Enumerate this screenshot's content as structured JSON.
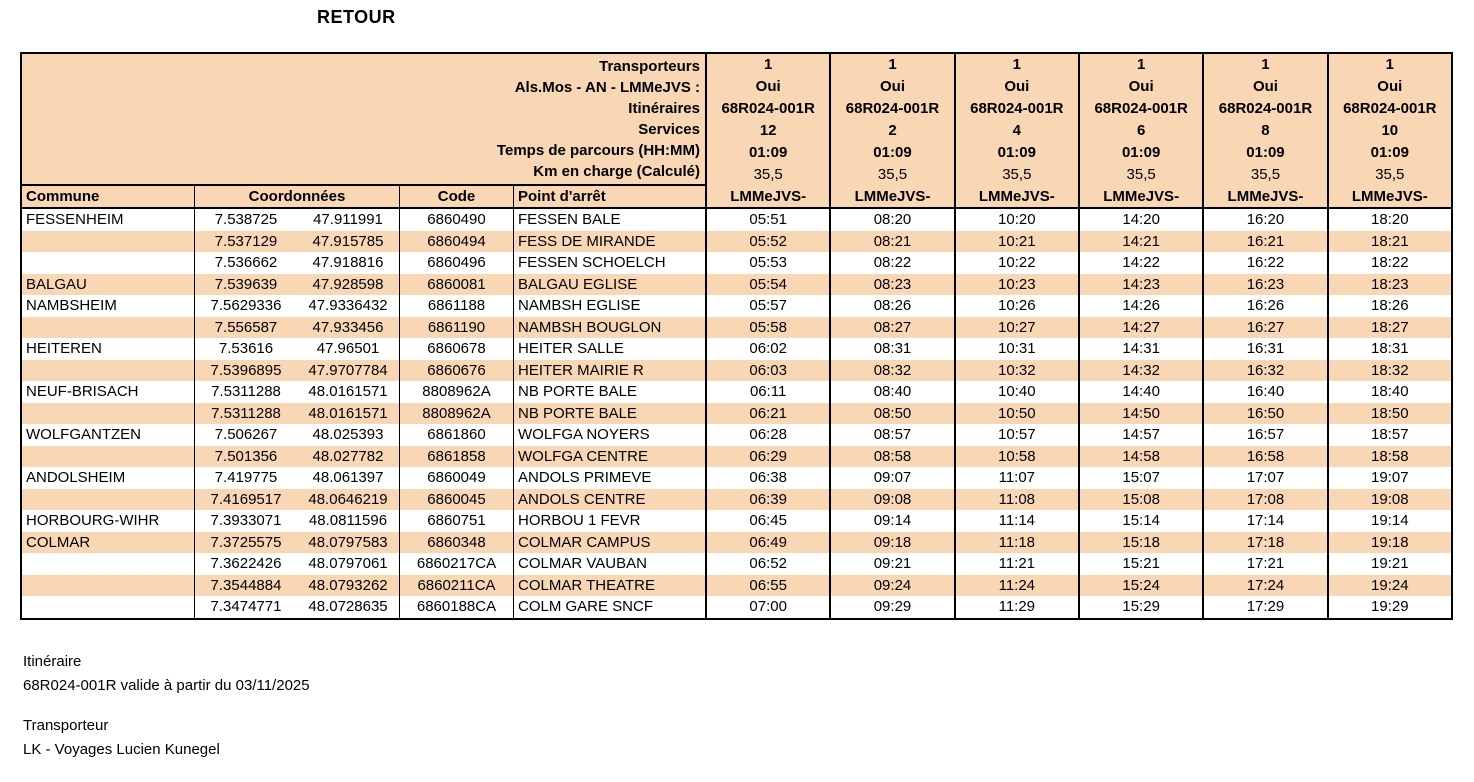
{
  "title": "RETOUR",
  "colors": {
    "peach": "#FAD7B4",
    "border": "#000000",
    "text": "#000000"
  },
  "header": {
    "labels": {
      "transporteurs": "Transporteurs",
      "an": "Als.Mos - AN - LMMeJVS :",
      "itineraires": "Itinéraires",
      "services": "Services",
      "temps": "Temps de parcours (HH:MM)",
      "km": "Km en charge (Calculé)"
    },
    "services": [
      {
        "transporteur": "1",
        "an": "Oui",
        "itineraire": "68R024-001R",
        "service": "12",
        "temps": "01:09",
        "km": "35,5",
        "jours": "LMMeJVS-"
      },
      {
        "transporteur": "1",
        "an": "Oui",
        "itineraire": "68R024-001R",
        "service": "2",
        "temps": "01:09",
        "km": "35,5",
        "jours": "LMMeJVS-"
      },
      {
        "transporteur": "1",
        "an": "Oui",
        "itineraire": "68R024-001R",
        "service": "4",
        "temps": "01:09",
        "km": "35,5",
        "jours": "LMMeJVS-"
      },
      {
        "transporteur": "1",
        "an": "Oui",
        "itineraire": "68R024-001R",
        "service": "6",
        "temps": "01:09",
        "km": "35,5",
        "jours": "LMMeJVS-"
      },
      {
        "transporteur": "1",
        "an": "Oui",
        "itineraire": "68R024-001R",
        "service": "8",
        "temps": "01:09",
        "km": "35,5",
        "jours": "LMMeJVS-"
      },
      {
        "transporteur": "1",
        "an": "Oui",
        "itineraire": "68R024-001R",
        "service": "10",
        "temps": "01:09",
        "km": "35,5",
        "jours": "LMMeJVS-"
      }
    ]
  },
  "columns": {
    "commune": "Commune",
    "coordonnees": "Coordonnées",
    "code": "Code",
    "arret": "Point d'arrêt"
  },
  "rows": [
    {
      "commune": "FESSENHEIM",
      "lon": "7.538725",
      "lat": "47.911991",
      "code": "6860490",
      "arret": "FESSEN BALE",
      "times": [
        "05:51",
        "08:20",
        "10:20",
        "14:20",
        "16:20",
        "18:20"
      ]
    },
    {
      "commune": "",
      "lon": "7.537129",
      "lat": "47.915785",
      "code": "6860494",
      "arret": "FESS DE MIRANDE",
      "times": [
        "05:52",
        "08:21",
        "10:21",
        "14:21",
        "16:21",
        "18:21"
      ]
    },
    {
      "commune": "",
      "lon": "7.536662",
      "lat": "47.918816",
      "code": "6860496",
      "arret": "FESSEN SCHOELCH",
      "times": [
        "05:53",
        "08:22",
        "10:22",
        "14:22",
        "16:22",
        "18:22"
      ]
    },
    {
      "commune": "BALGAU",
      "lon": "7.539639",
      "lat": "47.928598",
      "code": "6860081",
      "arret": "BALGAU EGLISE",
      "times": [
        "05:54",
        "08:23",
        "10:23",
        "14:23",
        "16:23",
        "18:23"
      ]
    },
    {
      "commune": "NAMBSHEIM",
      "lon": "7.5629336",
      "lat": "47.9336432",
      "code": "6861188",
      "arret": "NAMBSH EGLISE",
      "times": [
        "05:57",
        "08:26",
        "10:26",
        "14:26",
        "16:26",
        "18:26"
      ]
    },
    {
      "commune": "",
      "lon": "7.556587",
      "lat": "47.933456",
      "code": "6861190",
      "arret": "NAMBSH BOUGLON",
      "times": [
        "05:58",
        "08:27",
        "10:27",
        "14:27",
        "16:27",
        "18:27"
      ]
    },
    {
      "commune": "HEITEREN",
      "lon": "7.53616",
      "lat": "47.96501",
      "code": "6860678",
      "arret": "HEITER SALLE",
      "times": [
        "06:02",
        "08:31",
        "10:31",
        "14:31",
        "16:31",
        "18:31"
      ]
    },
    {
      "commune": "",
      "lon": "7.5396895",
      "lat": "47.9707784",
      "code": "6860676",
      "arret": "HEITER MAIRIE R",
      "times": [
        "06:03",
        "08:32",
        "10:32",
        "14:32",
        "16:32",
        "18:32"
      ]
    },
    {
      "commune": "NEUF-BRISACH",
      "lon": "7.5311288",
      "lat": "48.0161571",
      "code": "8808962A",
      "arret": "NB PORTE BALE",
      "times": [
        "06:11",
        "08:40",
        "10:40",
        "14:40",
        "16:40",
        "18:40"
      ]
    },
    {
      "commune": "",
      "lon": "7.5311288",
      "lat": "48.0161571",
      "code": "8808962A",
      "arret": "NB PORTE BALE",
      "times": [
        "06:21",
        "08:50",
        "10:50",
        "14:50",
        "16:50",
        "18:50"
      ]
    },
    {
      "commune": "WOLFGANTZEN",
      "lon": "7.506267",
      "lat": "48.025393",
      "code": "6861860",
      "arret": "WOLFGA NOYERS",
      "times": [
        "06:28",
        "08:57",
        "10:57",
        "14:57",
        "16:57",
        "18:57"
      ]
    },
    {
      "commune": "",
      "lon": "7.501356",
      "lat": "48.027782",
      "code": "6861858",
      "arret": "WOLFGA CENTRE",
      "times": [
        "06:29",
        "08:58",
        "10:58",
        "14:58",
        "16:58",
        "18:58"
      ]
    },
    {
      "commune": "ANDOLSHEIM",
      "lon": "7.419775",
      "lat": "48.061397",
      "code": "6860049",
      "arret": "ANDOLS PRIMEVE",
      "times": [
        "06:38",
        "09:07",
        "11:07",
        "15:07",
        "17:07",
        "19:07"
      ]
    },
    {
      "commune": "",
      "lon": "7.4169517",
      "lat": "48.0646219",
      "code": "6860045",
      "arret": "ANDOLS CENTRE",
      "times": [
        "06:39",
        "09:08",
        "11:08",
        "15:08",
        "17:08",
        "19:08"
      ]
    },
    {
      "commune": "HORBOURG-WIHR",
      "lon": "7.3933071",
      "lat": "48.0811596",
      "code": "6860751",
      "arret": "HORBOU 1 FEVR",
      "times": [
        "06:45",
        "09:14",
        "11:14",
        "15:14",
        "17:14",
        "19:14"
      ]
    },
    {
      "commune": "COLMAR",
      "lon": "7.3725575",
      "lat": "48.0797583",
      "code": "6860348",
      "arret": "COLMAR CAMPUS",
      "times": [
        "06:49",
        "09:18",
        "11:18",
        "15:18",
        "17:18",
        "19:18"
      ]
    },
    {
      "commune": "",
      "lon": "7.3622426",
      "lat": "48.0797061",
      "code": "6860217CA",
      "arret": "COLMAR VAUBAN",
      "times": [
        "06:52",
        "09:21",
        "11:21",
        "15:21",
        "17:21",
        "19:21"
      ]
    },
    {
      "commune": "",
      "lon": "7.3544884",
      "lat": "48.0793262",
      "code": "6860211CA",
      "arret": "COLMAR THEATRE",
      "times": [
        "06:55",
        "09:24",
        "11:24",
        "15:24",
        "17:24",
        "19:24"
      ]
    },
    {
      "commune": "",
      "lon": "7.3474771",
      "lat": "48.0728635",
      "code": "6860188CA",
      "arret": "COLM GARE SNCF",
      "times": [
        "07:00",
        "09:29",
        "11:29",
        "15:29",
        "17:29",
        "19:29"
      ]
    }
  ],
  "footer": {
    "itineraire_label": "Itinéraire",
    "itineraire_value": "68R024-001R valide à partir du 03/11/2025",
    "transporteur_label": "Transporteur",
    "transporteur_value": "LK - Voyages Lucien Kunegel"
  }
}
